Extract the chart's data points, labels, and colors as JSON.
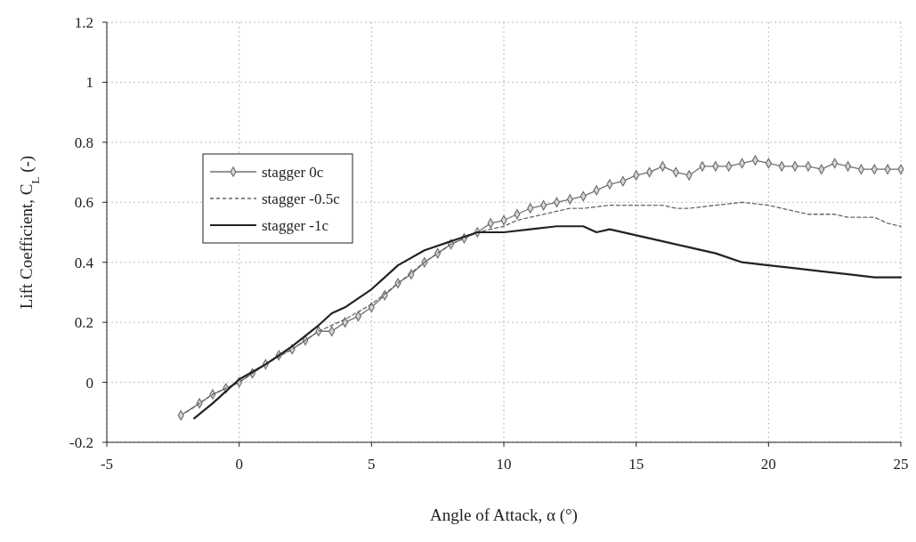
{
  "chart_data": {
    "type": "line",
    "xlabel": "Angle of Attack, α (°)",
    "ylabel": "Lift Coefficient, C$_{L}$ (-)",
    "xlim": [
      -5,
      25
    ],
    "xticks": [
      -5,
      0,
      5,
      10,
      15,
      20,
      25
    ],
    "ylim": [
      -0.2,
      1.2
    ],
    "yticks": [
      -0.2,
      0,
      0.2,
      0.4,
      0.6,
      0.8,
      1,
      1.2
    ],
    "grid": true,
    "legend": "top left",
    "series": [
      {
        "name": "stagger 0c",
        "color": "#707070",
        "marker": "diamond",
        "line_style": "solid",
        "x": [
          -2.2,
          -1.5,
          -1,
          -0.5,
          0,
          0.5,
          1,
          1.5,
          2,
          2.5,
          3,
          3.5,
          4,
          4.5,
          5,
          5.5,
          6,
          6.5,
          7,
          7.5,
          8,
          8.5,
          9,
          9.5,
          10,
          10.5,
          11,
          11.5,
          12,
          12.5,
          13,
          13.5,
          14,
          14.5,
          15,
          15.5,
          16,
          16.5,
          17,
          17.5,
          18,
          18.5,
          19,
          19.5,
          20,
          20.5,
          21,
          21.5,
          22,
          22.5,
          23,
          23.5,
          24,
          24.5,
          25
        ],
        "values": [
          -0.11,
          -0.07,
          -0.04,
          -0.02,
          0,
          0.03,
          0.06,
          0.09,
          0.11,
          0.14,
          0.17,
          0.17,
          0.2,
          0.22,
          0.25,
          0.29,
          0.33,
          0.36,
          0.4,
          0.43,
          0.46,
          0.48,
          0.5,
          0.53,
          0.54,
          0.56,
          0.58,
          0.59,
          0.6,
          0.61,
          0.62,
          0.64,
          0.66,
          0.67,
          0.69,
          0.7,
          0.72,
          0.7,
          0.69,
          0.72,
          0.72,
          0.72,
          0.73,
          0.74,
          0.73,
          0.72,
          0.72,
          0.72,
          0.71,
          0.73,
          0.72,
          0.71,
          0.71,
          0.71,
          0.71
        ]
      },
      {
        "name": "stagger -0.5c",
        "color": "#666666",
        "marker": "none",
        "line_style": "dashed",
        "x": [
          -2,
          -1,
          0,
          1,
          2,
          3,
          4,
          5,
          6,
          7,
          8,
          9,
          9.5,
          10,
          10.5,
          11,
          11.5,
          12,
          12.5,
          13,
          14,
          15,
          16,
          16.5,
          17,
          18,
          19,
          20,
          20.5,
          21,
          21.5,
          22,
          22.5,
          23,
          23.5,
          24,
          24.5,
          25
        ],
        "values": [
          -0.1,
          -0.04,
          0,
          0.06,
          0.11,
          0.17,
          0.21,
          0.26,
          0.33,
          0.4,
          0.46,
          0.5,
          0.51,
          0.52,
          0.54,
          0.55,
          0.56,
          0.57,
          0.58,
          0.58,
          0.59,
          0.59,
          0.59,
          0.58,
          0.58,
          0.59,
          0.6,
          0.59,
          0.58,
          0.57,
          0.56,
          0.56,
          0.56,
          0.55,
          0.55,
          0.55,
          0.53,
          0.52
        ]
      },
      {
        "name": "stagger -1c",
        "color": "#222222",
        "marker": "none",
        "line_style": "solid",
        "x": [
          -1.7,
          -1,
          0,
          1,
          2,
          3,
          3.5,
          4,
          5,
          5.5,
          6,
          7,
          8,
          9,
          10,
          11,
          12,
          12.5,
          13,
          13.5,
          14,
          15,
          16,
          17,
          18,
          19,
          20,
          21,
          22,
          23,
          24,
          25
        ],
        "values": [
          -0.12,
          -0.07,
          0.01,
          0.06,
          0.12,
          0.19,
          0.23,
          0.25,
          0.31,
          0.35,
          0.39,
          0.44,
          0.47,
          0.5,
          0.5,
          0.51,
          0.52,
          0.52,
          0.52,
          0.5,
          0.51,
          0.49,
          0.47,
          0.45,
          0.43,
          0.4,
          0.39,
          0.38,
          0.37,
          0.36,
          0.35,
          0.35
        ]
      }
    ]
  }
}
